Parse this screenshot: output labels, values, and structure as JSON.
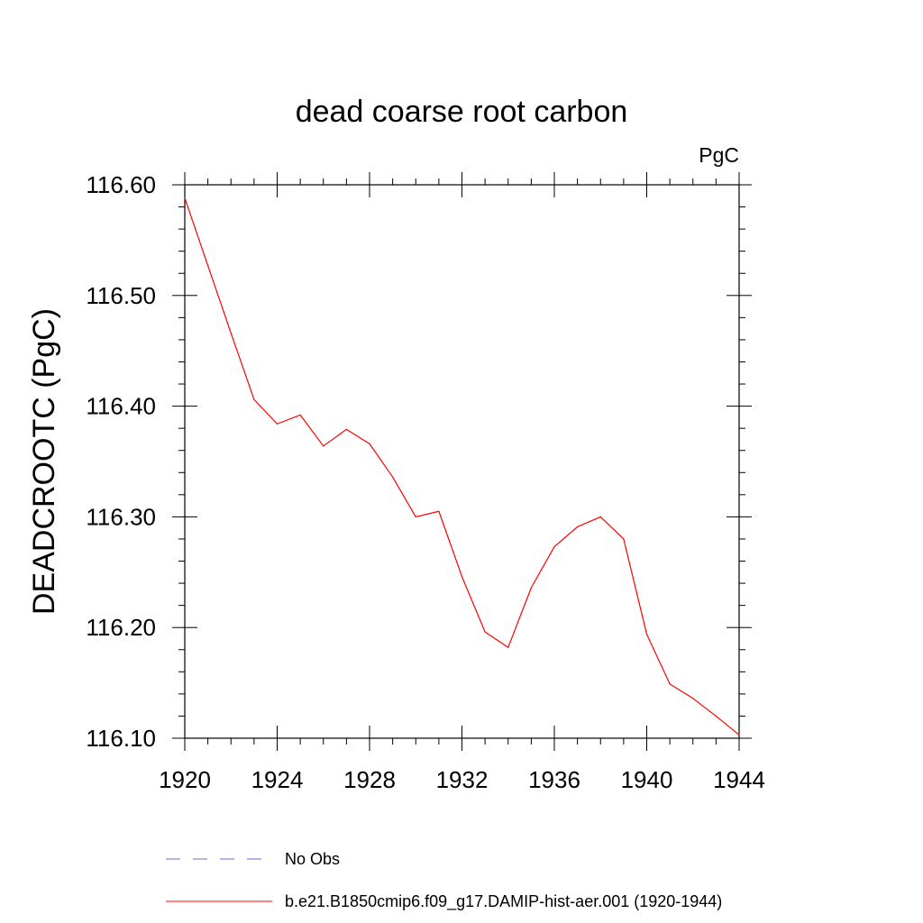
{
  "chart_data": {
    "type": "line",
    "title": "dead coarse root carbon",
    "units_label": "PgC",
    "xlabel": "",
    "ylabel": "DEADCROOTC  (PgC)",
    "xlim": [
      1920,
      1944
    ],
    "ylim": [
      116.1,
      116.6
    ],
    "x_ticks": [
      1920,
      1924,
      1928,
      1932,
      1936,
      1940,
      1944
    ],
    "x_tick_labels": [
      "1920",
      "1924",
      "1928",
      "1932",
      "1936",
      "1940",
      "1944"
    ],
    "y_ticks": [
      116.1,
      116.2,
      116.3,
      116.4,
      116.5,
      116.6
    ],
    "y_tick_labels": [
      "116.10",
      "116.20",
      "116.30",
      "116.40",
      "116.50",
      "116.60"
    ],
    "grid": false,
    "x": [
      1920,
      1921,
      1922,
      1923,
      1924,
      1925,
      1926,
      1927,
      1928,
      1929,
      1930,
      1931,
      1932,
      1933,
      1934,
      1935,
      1936,
      1937,
      1938,
      1939,
      1940,
      1941,
      1942,
      1943,
      1944
    ],
    "series": [
      {
        "name": "b.e21.B1850cmip6.f09_g17.DAMIP-hist-aer.001 (1920-1944)",
        "color": "#ff0000",
        "style": "solid",
        "values": [
          116.588,
          116.527,
          116.466,
          116.406,
          116.384,
          116.392,
          116.364,
          116.379,
          116.366,
          116.336,
          116.3,
          116.305,
          116.246,
          116.196,
          116.182,
          116.236,
          116.273,
          116.291,
          116.3,
          116.28,
          116.194,
          116.149,
          116.136,
          116.12,
          116.103
        ]
      }
    ],
    "legend": {
      "placement": "bottom",
      "entries": [
        {
          "label": "No Obs",
          "color": "#6a6ad0",
          "style": "dashed"
        },
        {
          "label": "b.e21.B1850cmip6.f09_g17.DAMIP-hist-aer.001 (1920-1944)",
          "color": "#ff0000",
          "style": "solid"
        }
      ]
    }
  }
}
